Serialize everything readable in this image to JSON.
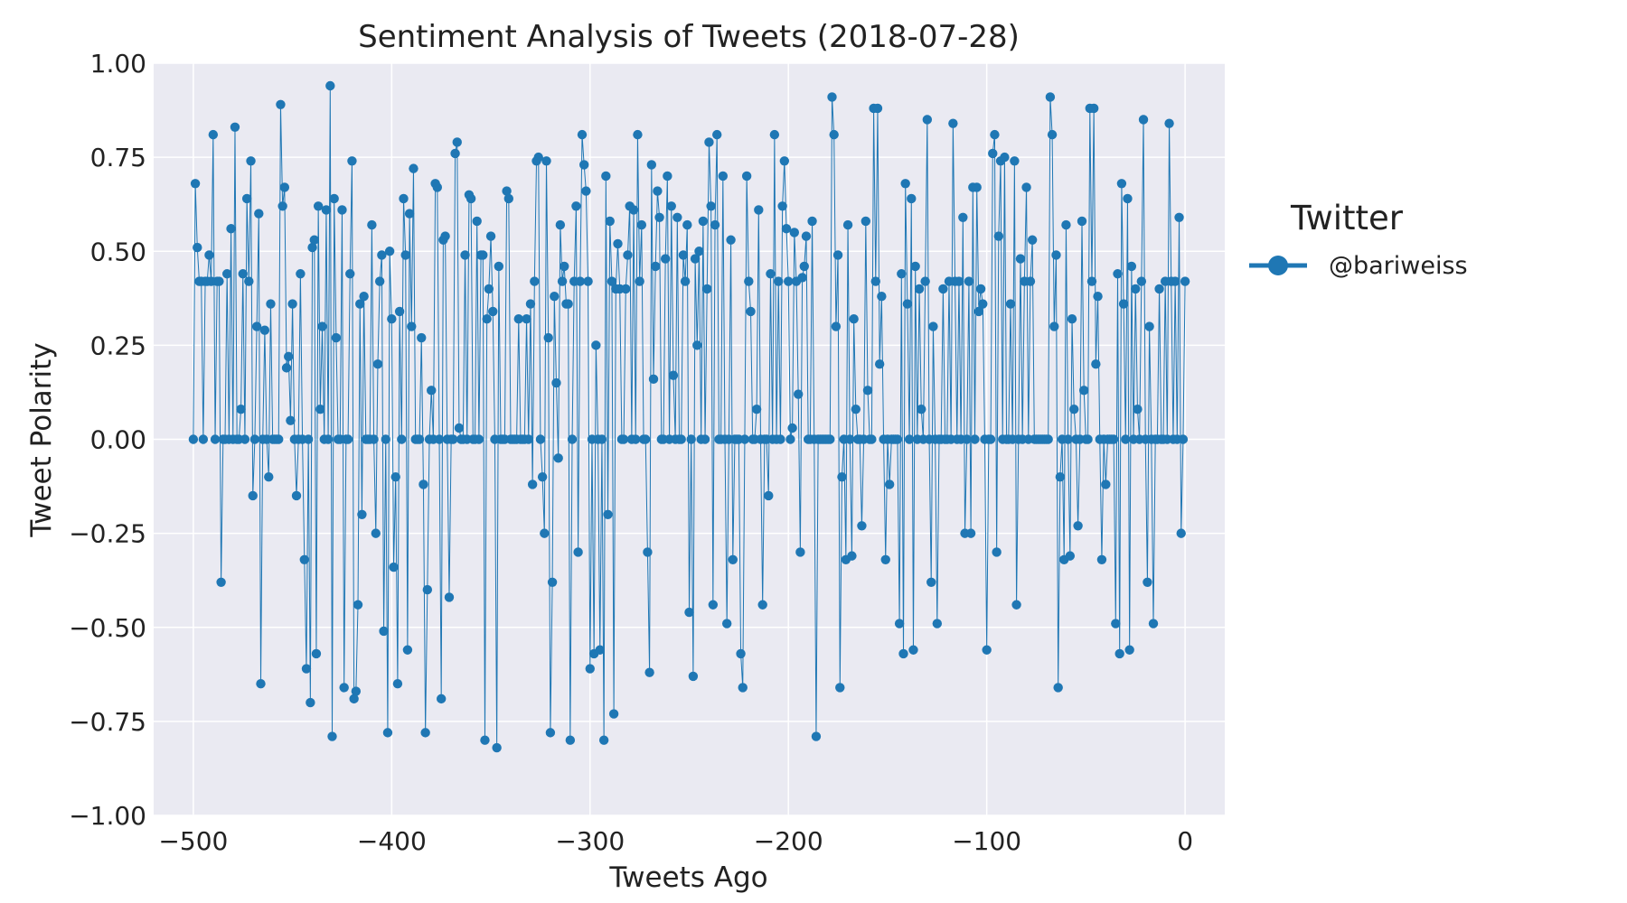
{
  "chart_data": {
    "type": "line",
    "title": "Sentiment Analysis of Tweets (2018-07-28)",
    "xlabel": "Tweets Ago",
    "ylabel": "Tweet Polarity",
    "xlim": [
      -520,
      20
    ],
    "ylim": [
      -1.0,
      1.0
    ],
    "x_ticks": [
      -500,
      -400,
      -300,
      -200,
      -100,
      0
    ],
    "x_tick_labels": [
      "−500",
      "−400",
      "−300",
      "−200",
      "−100",
      "0"
    ],
    "y_ticks": [
      1.0,
      0.75,
      0.5,
      0.25,
      0.0,
      -0.25,
      -0.5,
      -0.75,
      -1.0
    ],
    "y_tick_labels": [
      "1.00",
      "0.75",
      "0.50",
      "0.25",
      "0.00",
      "−0.25",
      "−0.50",
      "−0.75",
      "−1.00"
    ],
    "grid": true,
    "legend": {
      "title": "Twitter",
      "placement": "outside-right"
    },
    "colors": {
      "series": "#1f77b4",
      "plot_background": "#eaeaf2",
      "grid": "#ffffff"
    },
    "series": [
      {
        "name": "@bariweiss",
        "x_start": -500,
        "x_step": 1,
        "values": [
          0.0,
          0.68,
          0.51,
          0.42,
          0.42,
          0.0,
          0.42,
          0.42,
          0.49,
          0.42,
          0.81,
          0.0,
          0.42,
          0.42,
          -0.38,
          0.0,
          0.0,
          0.44,
          0.0,
          0.56,
          0.0,
          0.83,
          0.0,
          0.0,
          0.08,
          0.44,
          0.0,
          0.64,
          0.42,
          0.74,
          -0.15,
          0.0,
          0.3,
          0.6,
          -0.65,
          0.0,
          0.29,
          0.0,
          -0.1,
          0.36,
          0.0,
          0.0,
          0.0,
          0.0,
          0.89,
          0.62,
          0.67,
          0.19,
          0.22,
          0.05,
          0.36,
          0.0,
          -0.15,
          0.0,
          0.44,
          0.0,
          -0.32,
          -0.61,
          0.0,
          -0.7,
          0.51,
          0.53,
          -0.57,
          0.62,
          0.08,
          0.3,
          0.0,
          0.61,
          0.0,
          0.94,
          -0.79,
          0.64,
          0.27,
          0.0,
          0.0,
          0.61,
          -0.66,
          0.0,
          0.0,
          0.44,
          0.74,
          -0.69,
          -0.67,
          -0.44,
          0.36,
          -0.2,
          0.38,
          0.0,
          0.0,
          0.0,
          0.57,
          0.0,
          -0.25,
          0.2,
          0.42,
          0.49,
          -0.51,
          0.0,
          -0.78,
          0.5,
          0.32,
          -0.34,
          -0.1,
          -0.65,
          0.34,
          0.0,
          0.64,
          0.49,
          -0.56,
          0.6,
          0.3,
          0.72,
          0.0,
          0.0,
          0.0,
          0.27,
          -0.12,
          -0.78,
          -0.4,
          0.0,
          0.13,
          0.0,
          0.68,
          0.67,
          0.0,
          -0.69,
          0.53,
          0.54,
          0.0,
          -0.42,
          0.0,
          0.0,
          0.76,
          0.79,
          0.03,
          0.0,
          0.0,
          0.49,
          0.0,
          0.65,
          0.64,
          0.0,
          0.0,
          0.58,
          0.0,
          0.49,
          0.49,
          -0.8,
          0.32,
          0.4,
          0.54,
          0.34,
          0.0,
          -0.82,
          0.46,
          0.0,
          0.0,
          0.0,
          0.66,
          0.64,
          0.0,
          0.0,
          0.0,
          0.0,
          0.32,
          0.0,
          0.0,
          0.0,
          0.32,
          0.0,
          0.36,
          -0.12,
          0.42,
          0.74,
          0.75,
          0.0,
          -0.1,
          -0.25,
          0.74,
          0.27,
          -0.78,
          -0.38,
          0.38,
          0.15,
          -0.05,
          0.57,
          0.42,
          0.46,
          0.36,
          0.36,
          -0.8,
          0.0,
          0.42,
          0.62,
          -0.3,
          0.42,
          0.81,
          0.73,
          0.66,
          0.42,
          -0.61,
          0.0,
          -0.57,
          0.25,
          0.0,
          -0.56,
          0.0,
          -0.8,
          0.7,
          -0.2,
          0.58,
          0.42,
          -0.73,
          0.4,
          0.52,
          0.4,
          0.0,
          0.0,
          0.4,
          0.49,
          0.62,
          0.0,
          0.61,
          0.0,
          0.81,
          0.42,
          0.57,
          0.0,
          0.0,
          -0.3,
          -0.62,
          0.73,
          0.16,
          0.46,
          0.66,
          0.59,
          0.0,
          0.0,
          0.48,
          0.7,
          0.0,
          0.62,
          0.17,
          0.0,
          0.59,
          0.0,
          0.0,
          0.49,
          0.42,
          0.57,
          -0.46,
          0.0,
          -0.63,
          0.48,
          0.25,
          0.5,
          0.0,
          0.58,
          0.0,
          0.4,
          0.79,
          0.62,
          -0.44,
          0.57,
          0.81,
          0.0,
          0.0,
          0.7,
          0.0,
          -0.49,
          0.0,
          0.53,
          -0.32,
          0.0,
          0.0,
          0.0,
          -0.57,
          -0.66,
          0.0,
          0.7,
          0.42,
          0.34,
          0.0,
          0.0,
          0.08,
          0.61,
          0.0,
          -0.44,
          0.0,
          0.0,
          -0.15,
          0.44,
          0.0,
          0.81,
          0.0,
          0.42,
          0.0,
          0.62,
          0.74,
          0.56,
          0.42,
          0.0,
          0.03,
          0.55,
          0.42,
          0.12,
          -0.3,
          0.43,
          0.46,
          0.54,
          0.0,
          0.0,
          0.58,
          0.0,
          -0.79,
          0.0,
          0.0,
          0.0,
          0.0,
          0.0,
          0.0,
          0.0,
          0.91,
          0.81,
          0.3,
          0.49,
          -0.66,
          -0.1,
          0.0,
          -0.32,
          0.57,
          0.0,
          -0.31,
          0.32,
          0.08,
          0.0,
          0.0,
          -0.23,
          0.0,
          0.58,
          0.13,
          0.0,
          0.0,
          0.88,
          0.42,
          0.88,
          0.2,
          0.38,
          0.0,
          -0.32,
          0.0,
          -0.12,
          0.0,
          0.0,
          0.0,
          0.0,
          -0.49,
          0.44,
          -0.57,
          0.68,
          0.36,
          0.0,
          0.64,
          -0.56,
          0.46,
          0.0,
          0.4,
          0.08,
          0.0,
          0.42,
          0.85,
          0.0,
          -0.38,
          0.3,
          0.0,
          -0.49,
          0.0,
          0.0,
          0.4,
          0.0,
          0.0,
          0.42,
          0.0,
          0.84,
          0.42,
          0.0,
          0.42,
          0.0,
          0.59,
          -0.25,
          0.0,
          0.42,
          -0.25,
          0.67,
          0.0,
          0.67,
          0.34,
          0.4,
          0.36,
          0.0,
          -0.56,
          0.0,
          0.0,
          0.76,
          0.81,
          -0.3,
          0.54,
          0.74,
          0.0,
          0.75,
          0.0,
          0.0,
          0.36,
          0.0,
          0.74,
          -0.44,
          0.0,
          0.48,
          0.0,
          0.42,
          0.67,
          0.0,
          0.42,
          0.53,
          0.0,
          0.0,
          0.0,
          0.0,
          0.0,
          0.0,
          0.0,
          0.0,
          0.91,
          0.81,
          0.3,
          0.49,
          -0.66,
          -0.1,
          0.0,
          -0.32,
          0.57,
          0.0,
          -0.31,
          0.32,
          0.08,
          0.0,
          -0.23,
          0.0,
          0.58,
          0.13,
          0.0,
          0.0,
          0.88,
          0.42,
          0.88,
          0.2,
          0.38,
          0.0,
          -0.32,
          0.0,
          -0.12,
          0.0,
          0.0,
          0.0,
          0.0,
          -0.49,
          0.44,
          -0.57,
          0.68,
          0.36,
          0.0,
          0.64,
          -0.56,
          0.46,
          0.0,
          0.4,
          0.08,
          0.0,
          0.42,
          0.85,
          0.0,
          -0.38,
          0.3,
          0.0,
          -0.49,
          0.0,
          0.0,
          0.4,
          0.0,
          0.0,
          0.42,
          0.0,
          0.84,
          0.42,
          0.0,
          0.42,
          0.0,
          0.59,
          -0.25,
          0.0,
          0.42
        ]
      }
    ]
  }
}
